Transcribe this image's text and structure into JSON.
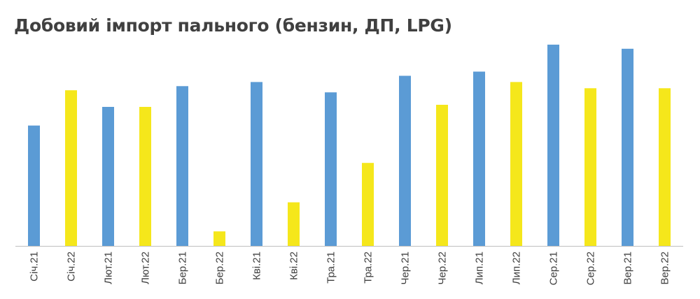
{
  "chart_data": {
    "type": "bar",
    "title": "Добовий імпорт пального (бензин, ДП, LPG)",
    "categories": [
      "Січ.21",
      "Січ.22",
      "Лют.21",
      "Лют.22",
      "Бер.21",
      "Бер.22",
      "Кві.21",
      "Кві.22",
      "Тра.21",
      "Тра.22",
      "Чер.21",
      "Чер.22",
      "Лип.21",
      "Лип.22",
      "Сер.21",
      "Сер.22",
      "Вер.21",
      "Вер.22"
    ],
    "values": [
      58,
      75,
      67,
      67,
      77,
      7,
      79,
      21,
      74,
      40,
      82,
      68,
      84,
      79,
      97,
      76,
      95,
      76
    ],
    "colors": [
      "#5b9bd5",
      "#f5e71b",
      "#5b9bd5",
      "#f5e71b",
      "#5b9bd5",
      "#f5e71b",
      "#5b9bd5",
      "#f5e71b",
      "#5b9bd5",
      "#f5e71b",
      "#5b9bd5",
      "#f5e71b",
      "#5b9bd5",
      "#f5e71b",
      "#5b9bd5",
      "#f5e71b",
      "#5b9bd5",
      "#f5e71b"
    ],
    "xlabel": "",
    "ylabel": "",
    "ylim": [
      0,
      100
    ],
    "grid": false,
    "axis_color": "#bfbfbf"
  }
}
